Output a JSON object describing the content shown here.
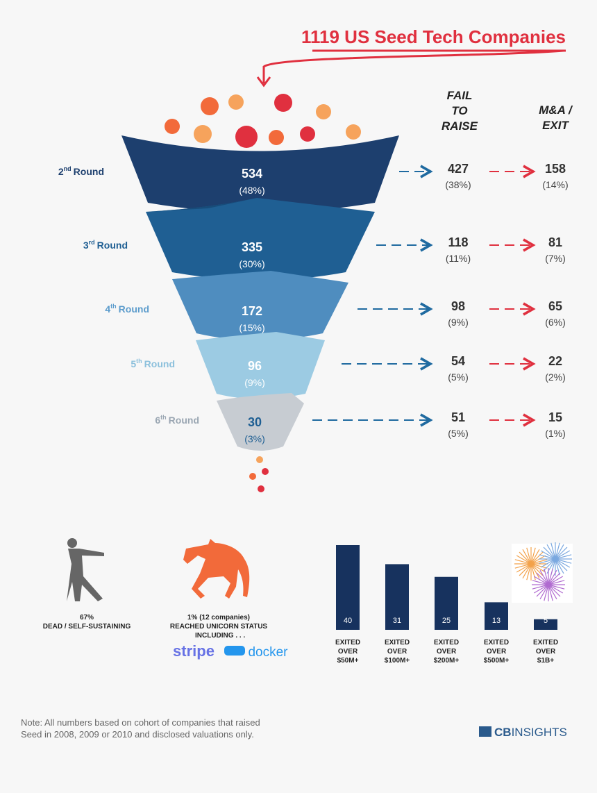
{
  "title": "1119 US Seed Tech Companies",
  "fail_header": [
    "FAIL",
    "TO",
    "RAISE"
  ],
  "exit_header": [
    "M&A /",
    "EXIT"
  ],
  "funnel": {
    "rows": [
      {
        "num": "2",
        "sup": "nd",
        "word": "Round",
        "count": 534,
        "share": "(48%)",
        "fail": 427,
        "fail_share": "(38%)",
        "exit": 158,
        "exit_share": "(14%)"
      },
      {
        "num": "3",
        "sup": "rd",
        "word": "Round",
        "count": 335,
        "share": "(30%)",
        "fail": 118,
        "fail_share": "(11%)",
        "exit": 81,
        "exit_share": "(7%)"
      },
      {
        "num": "4",
        "sup": "th",
        "word": "Round",
        "count": 172,
        "share": "(15%)",
        "fail": 98,
        "fail_share": "(9%)",
        "exit": 65,
        "exit_share": "(6%)"
      },
      {
        "num": "5",
        "sup": "th",
        "word": "Round",
        "count": 96,
        "share": "(9%)",
        "fail": 54,
        "fail_share": "(5%)",
        "exit": 22,
        "exit_share": "(2%)"
      },
      {
        "num": "6",
        "sup": "th",
        "word": "Round",
        "count": 30,
        "share": "(3%)",
        "fail": 51,
        "fail_share": "(5%)",
        "exit": 15,
        "exit_share": "(1%)"
      }
    ]
  },
  "dead": {
    "share": "67%",
    "label": "DEAD / SELF-SUSTAINING"
  },
  "unicorn": {
    "share": "1%  (12 companies)",
    "line1": "REACHED UNICORN STATUS",
    "line2": "INCLUDING . . .",
    "logos": [
      "stripe",
      "docker"
    ]
  },
  "chart_data": {
    "type": "bar",
    "categories": [
      "EXITED OVER $50M+",
      "EXITED OVER $100M+",
      "EXITED OVER $200M+",
      "EXITED OVER $500M+",
      "EXITED OVER $1B+"
    ],
    "values": [
      40,
      31,
      25,
      13,
      5
    ],
    "color": "#17325e"
  },
  "note": [
    "Note: All numbers based on cohort of companies that raised",
    "Seed in 2008, 2009 or 2010 and disclosed valuations only."
  ],
  "brand": {
    "bold": "CB",
    "rest": "INSIGHTS"
  }
}
